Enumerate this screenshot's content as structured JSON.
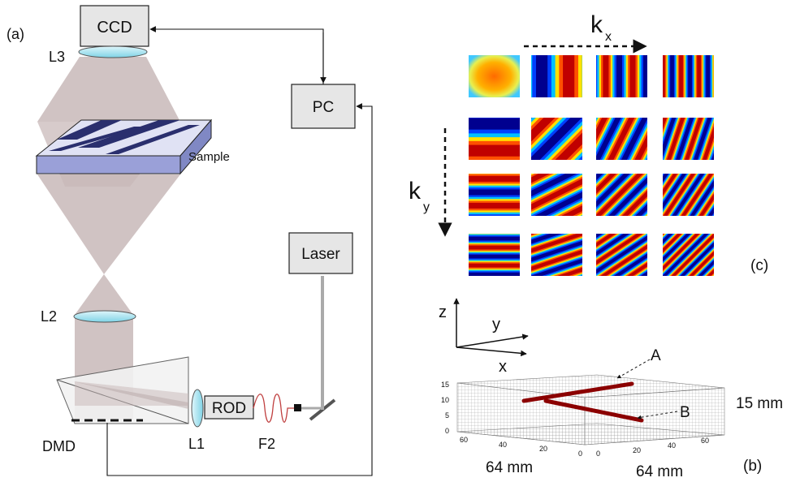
{
  "figure": {
    "panel_a": "(a)",
    "panel_b": "(b)",
    "panel_c": "(c)"
  },
  "setup": {
    "ccd": "CCD",
    "pc": "PC",
    "laser": "Laser",
    "rod": "ROD",
    "sample": "Sample",
    "l1": "L1",
    "l2": "L2",
    "l3": "L3",
    "f2": "F2",
    "dmd": "DMD"
  },
  "patterns": {
    "kx_label": "k",
    "kx_sub": "x",
    "ky_label": "k",
    "ky_sub": "y",
    "grid": [
      {
        "kx": 0,
        "ky": 0,
        "kind": "uniform"
      },
      {
        "kx": 1,
        "ky": 0
      },
      {
        "kx": 2,
        "ky": 0
      },
      {
        "kx": 3,
        "ky": 0
      },
      {
        "kx": 0,
        "ky": 1
      },
      {
        "kx": 1,
        "ky": 1
      },
      {
        "kx": 2,
        "ky": 1
      },
      {
        "kx": 3,
        "ky": 1
      },
      {
        "kx": 0,
        "ky": 2
      },
      {
        "kx": 1,
        "ky": 2
      },
      {
        "kx": 2,
        "ky": 2
      },
      {
        "kx": 3,
        "ky": 2
      },
      {
        "kx": 0,
        "ky": 3
      },
      {
        "kx": 1,
        "ky": 3
      },
      {
        "kx": 2,
        "ky": 3
      },
      {
        "kx": 3,
        "ky": 3
      }
    ],
    "colors": [
      "#00008f",
      "#0040ff",
      "#00c0ff",
      "#70ff80",
      "#ffe000",
      "#ff5000",
      "#c00000"
    ]
  },
  "volume": {
    "axis_z": "z",
    "axis_y": "y",
    "axis_x": "x",
    "marker_a": "A",
    "marker_b": "B",
    "z_ticks": [
      "15",
      "10",
      "5",
      "0"
    ],
    "left_ticks": [
      "60",
      "40",
      "20",
      "0"
    ],
    "right_ticks": [
      "0",
      "20",
      "40",
      "60"
    ],
    "dim_z": "15 mm",
    "dim_x": "64 mm",
    "dim_y": "64 mm",
    "rod_color": "#8b0000"
  }
}
